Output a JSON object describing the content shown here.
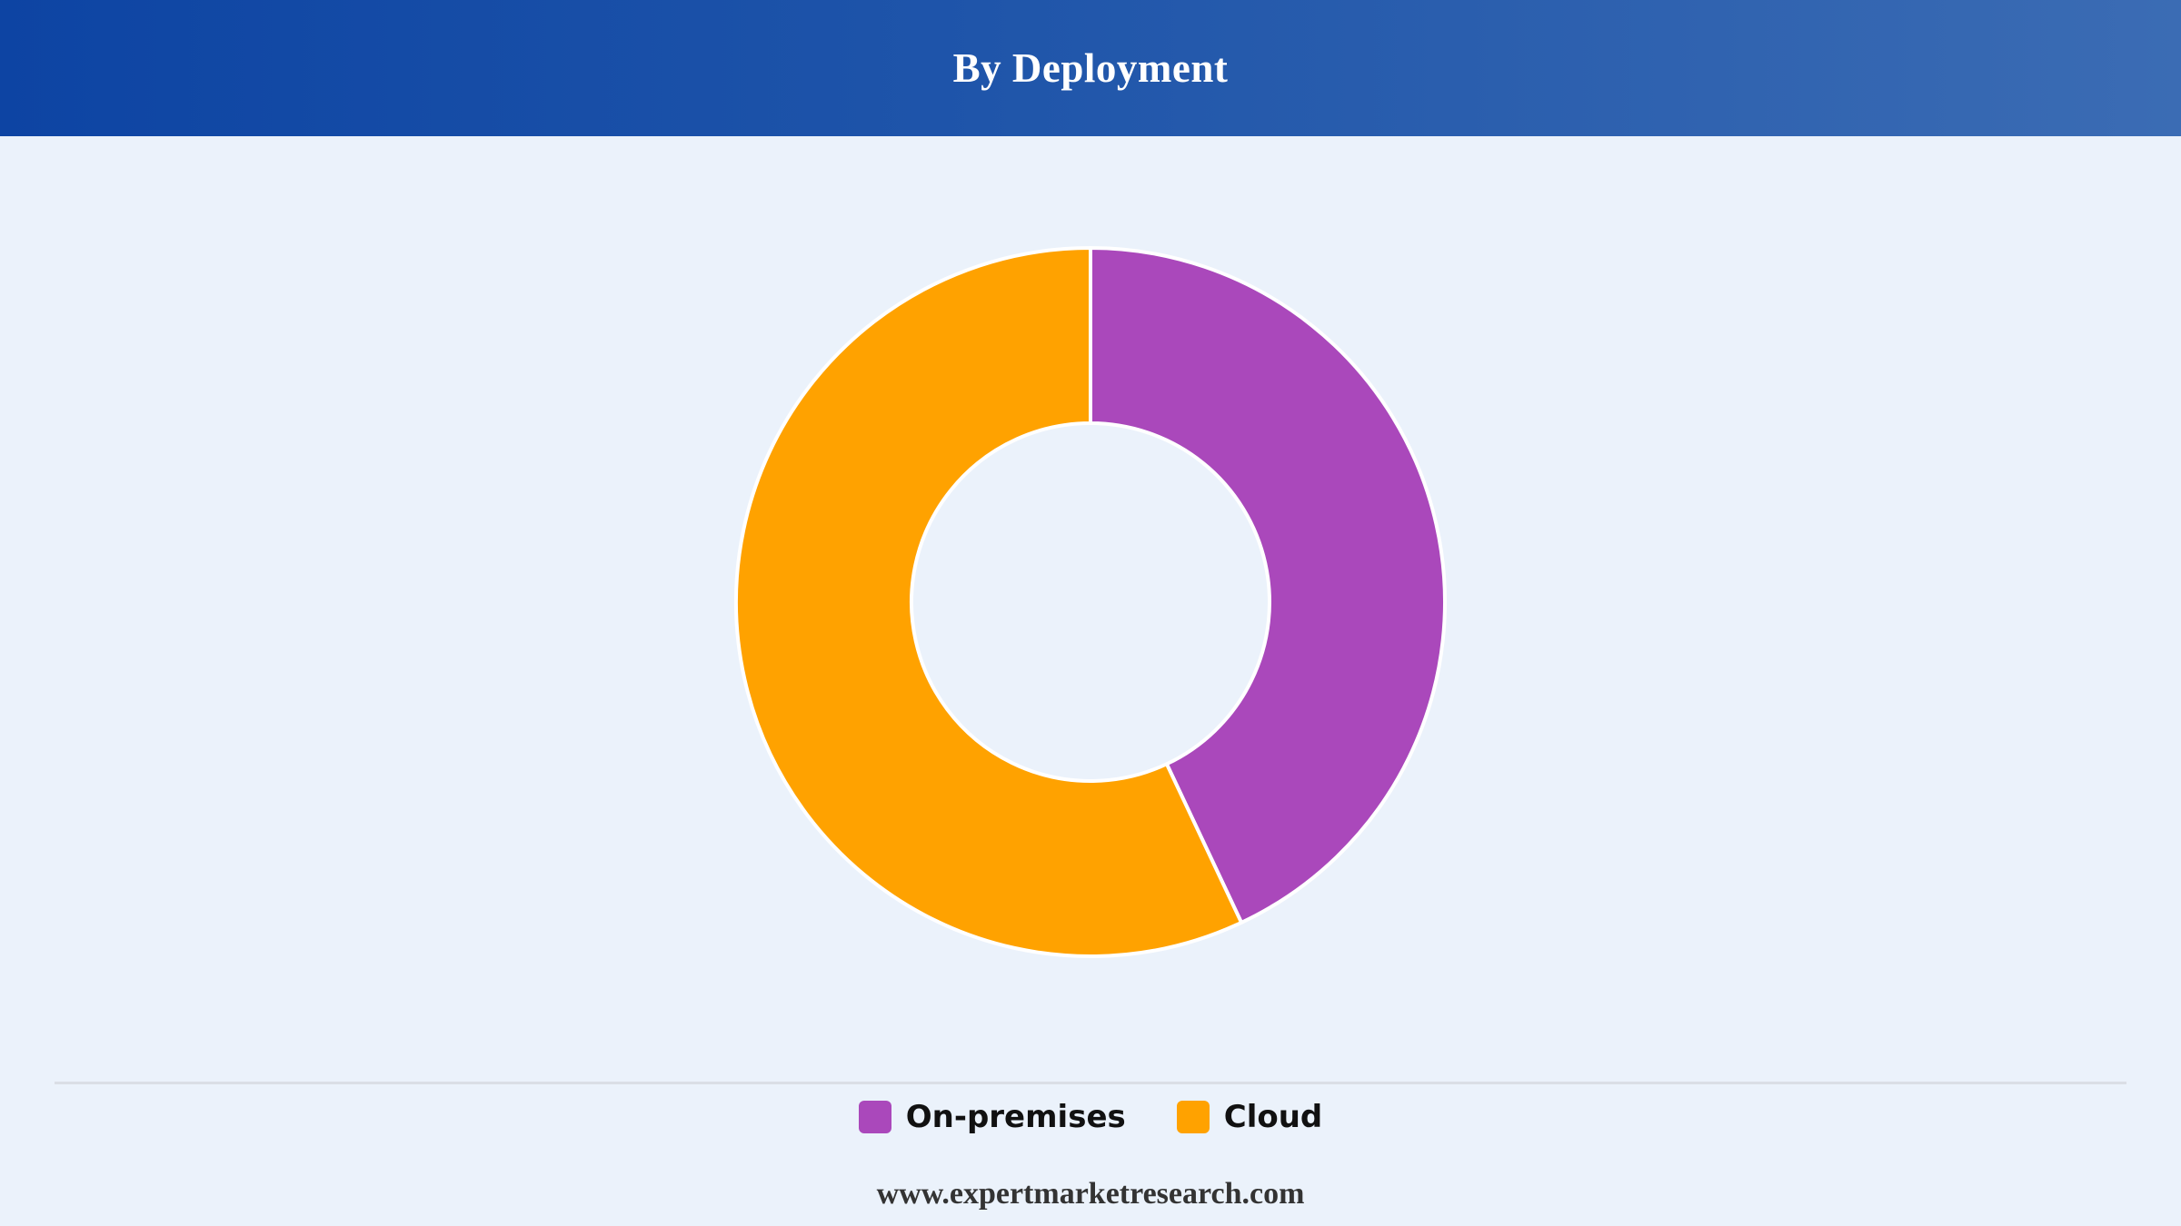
{
  "header": {
    "title": "By Deployment",
    "background_start": "#0d44a3",
    "background_end": "#3b6cb4"
  },
  "chart_data": {
    "type": "pie",
    "variant": "donut",
    "title": "By Deployment",
    "categories": [
      "On-premises",
      "Cloud"
    ],
    "values": [
      43,
      57
    ],
    "unit": "%",
    "colors": [
      "#aa48bb",
      "#ffa200"
    ],
    "start_angle_deg": 0,
    "direction": "clockwise",
    "legend_position": "bottom"
  },
  "legend": {
    "items": [
      {
        "label": "On-premises",
        "color": "#aa48bb"
      },
      {
        "label": "Cloud",
        "color": "#ffa200"
      }
    ]
  },
  "footer": {
    "text": "www.expertmarketresearch.com"
  }
}
